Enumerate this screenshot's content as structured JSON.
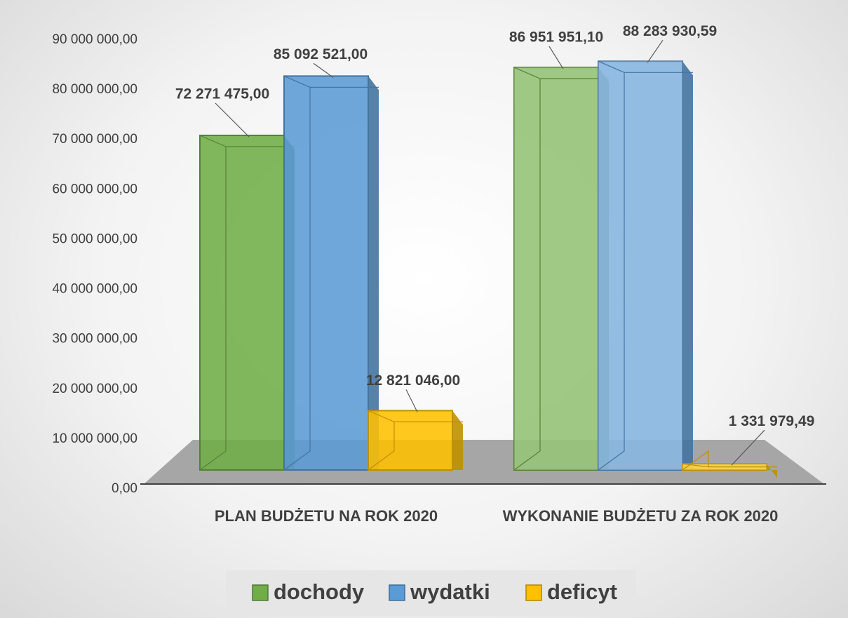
{
  "chart_data": {
    "type": "bar3d",
    "categories": [
      "PLAN BUDŻETU NA ROK 2020",
      "WYKONANIE BUDŻETU ZA ROK 2020"
    ],
    "series": [
      {
        "name": "dochody",
        "color": "#70ad47",
        "values": [
          72271475.0,
          86951951.1
        ],
        "value_labels": [
          "72 271 475,00",
          "86 951 951,10"
        ]
      },
      {
        "name": "wydatki",
        "color": "#5b9bd5",
        "values": [
          85092521.0,
          88283930.59
        ],
        "value_labels": [
          "85 092 521,00",
          "88 283 930,59"
        ]
      },
      {
        "name": "deficyt",
        "color": "#ffc000",
        "values": [
          12821046.0,
          1331979.49
        ],
        "value_labels": [
          "12 821 046,00",
          "1 331 979,49"
        ]
      }
    ],
    "ylim": [
      0,
      90000000
    ],
    "yticks": [
      {
        "value": 0,
        "label": "0,00"
      },
      {
        "value": 10000000,
        "label": "10 000 000,00"
      },
      {
        "value": 20000000,
        "label": "20 000 000,00"
      },
      {
        "value": 30000000,
        "label": "30 000 000,00"
      },
      {
        "value": 40000000,
        "label": "40 000 000,00"
      },
      {
        "value": 50000000,
        "label": "50 000 000,00"
      },
      {
        "value": 60000000,
        "label": "60 000 000,00"
      },
      {
        "value": 70000000,
        "label": "70 000 000,00"
      },
      {
        "value": 80000000,
        "label": "80 000 000,00"
      },
      {
        "value": 90000000,
        "label": "90 000 000,00"
      }
    ],
    "legend": "bottom"
  }
}
